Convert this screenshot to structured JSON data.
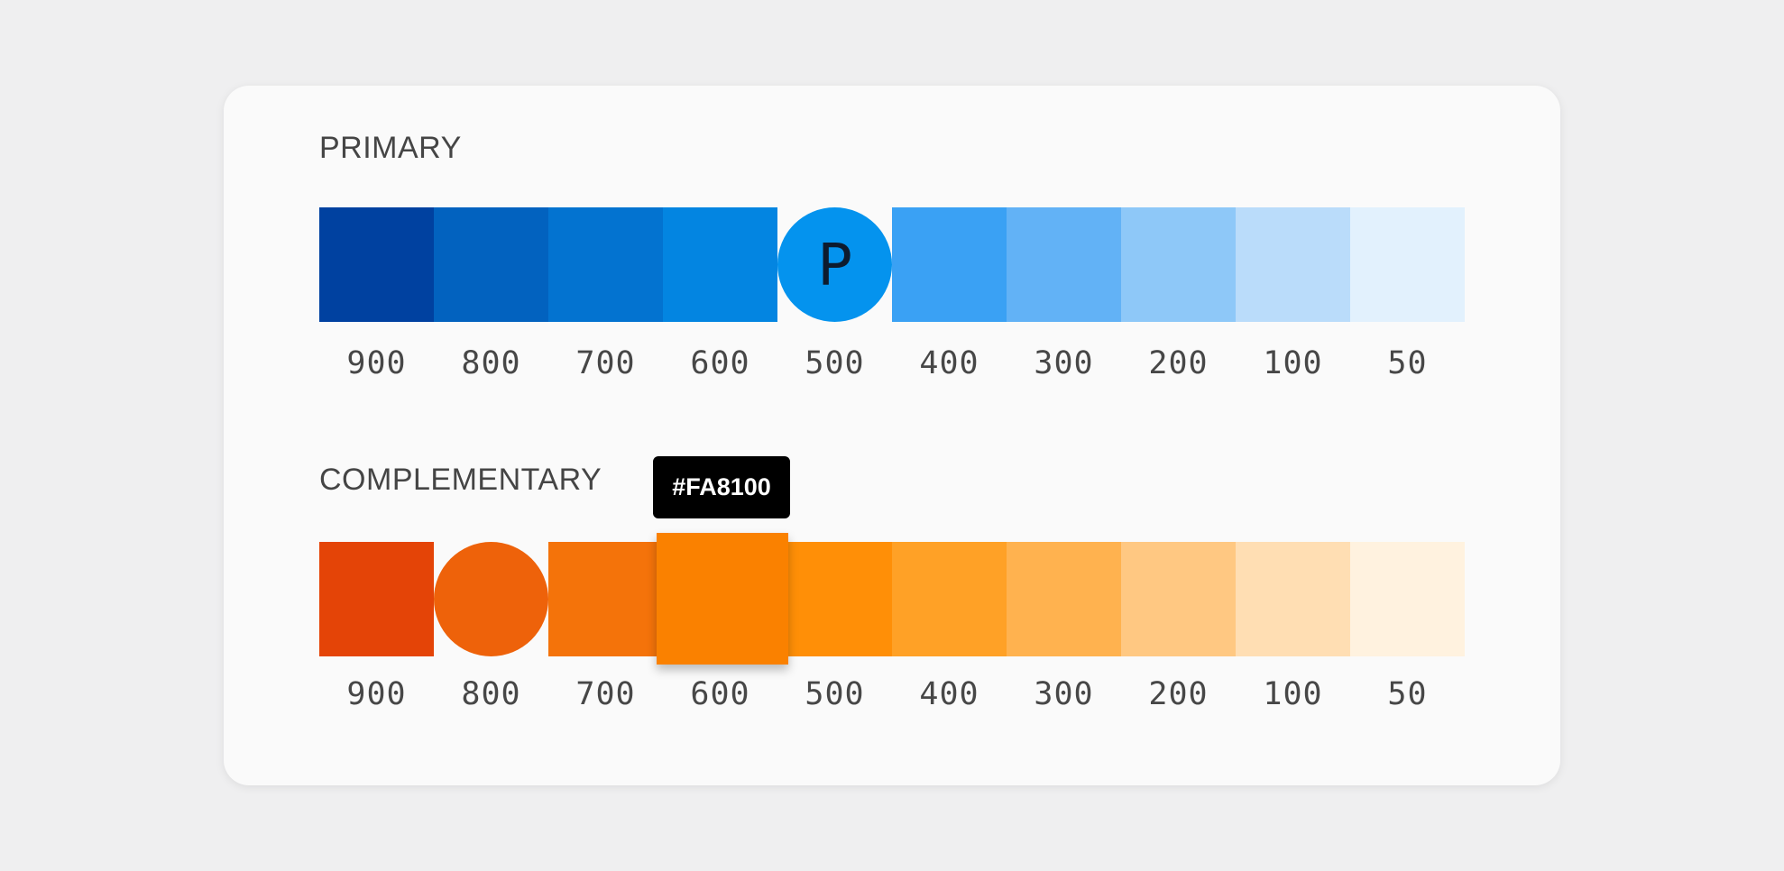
{
  "primary": {
    "title": "PRIMARY",
    "swatches": [
      {
        "shade": "900",
        "color": "#0041a0"
      },
      {
        "shade": "800",
        "color": "#0262bf"
      },
      {
        "shade": "700",
        "color": "#0373d0"
      },
      {
        "shade": "600",
        "color": "#0385e1"
      },
      {
        "shade": "500",
        "color": "#0493ee",
        "letter": "P"
      },
      {
        "shade": "400",
        "color": "#3aa1f4"
      },
      {
        "shade": "300",
        "color": "#62b2f6"
      },
      {
        "shade": "200",
        "color": "#8ec8f8"
      },
      {
        "shade": "100",
        "color": "#badcfa"
      },
      {
        "shade": "50",
        "color": "#e2f1fd"
      }
    ]
  },
  "complementary": {
    "title": "COMPLEMENTARY",
    "tooltip": "#FA8100",
    "swatches": [
      {
        "shade": "900",
        "color": "#e44407"
      },
      {
        "shade": "800",
        "color": "#ee620a"
      },
      {
        "shade": "700",
        "color": "#f4730a"
      },
      {
        "shade": "600",
        "color": "#fa8100"
      },
      {
        "shade": "500",
        "color": "#ff8f07"
      },
      {
        "shade": "400",
        "color": "#ffa126"
      },
      {
        "shade": "300",
        "color": "#ffb24f"
      },
      {
        "shade": "200",
        "color": "#ffc882"
      },
      {
        "shade": "100",
        "color": "#ffdeb3"
      },
      {
        "shade": "50",
        "color": "#fff2df"
      }
    ]
  }
}
